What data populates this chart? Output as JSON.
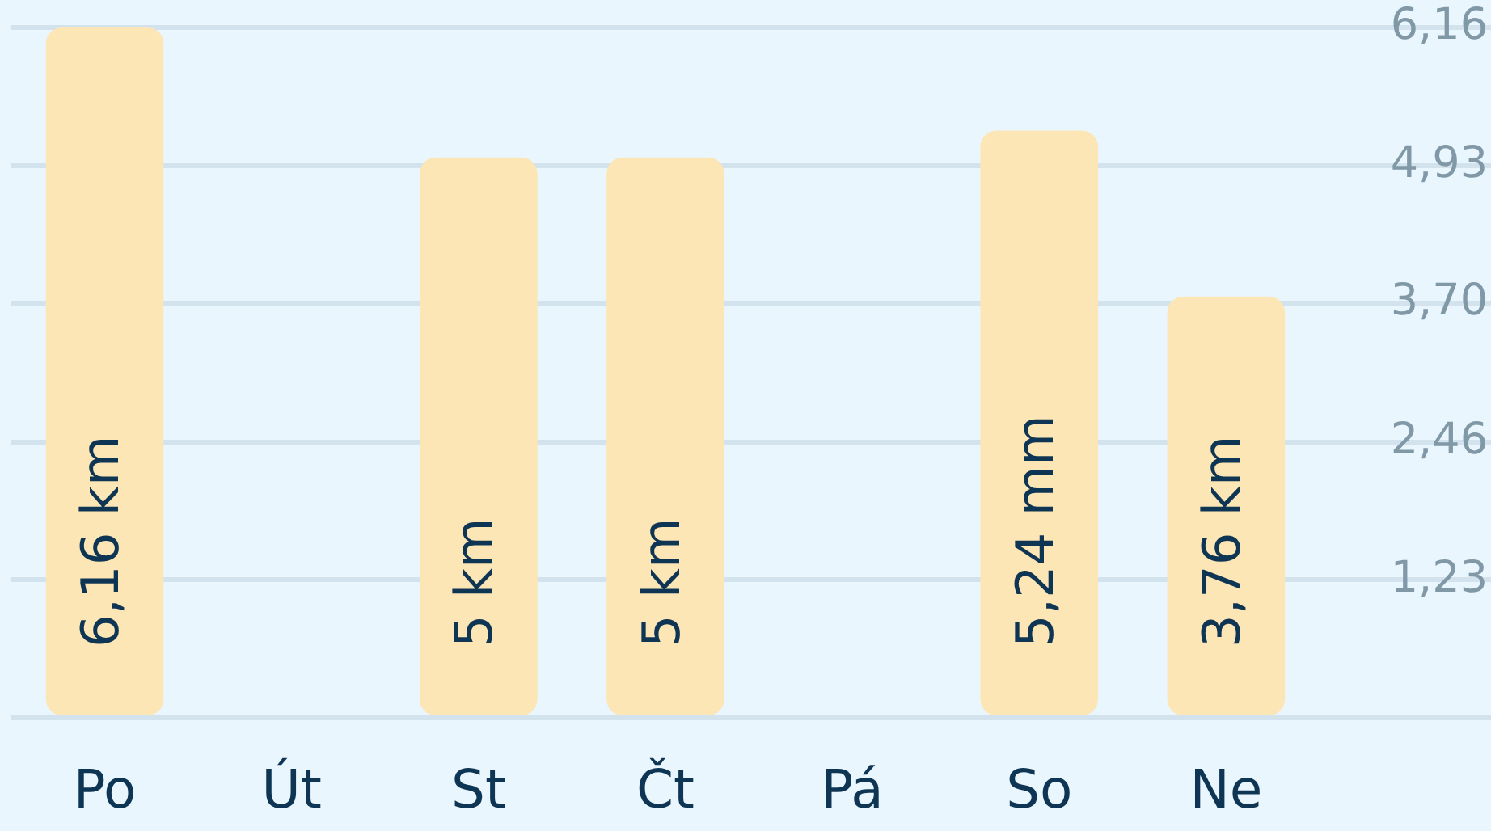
{
  "chart_data": {
    "type": "bar",
    "categories": [
      "Po",
      "Út",
      "St",
      "Čt",
      "Pá",
      "So",
      "Ne"
    ],
    "values": [
      6.16,
      null,
      5,
      5,
      null,
      5.24,
      3.76
    ],
    "value_labels": [
      "6,16 km",
      null,
      "5 km",
      "5 km",
      null,
      "5,24 mm",
      "3,76 km"
    ],
    "color": "#fde6b6",
    "ylim": [
      0,
      6.16
    ],
    "yticks": [
      {
        "value": 0,
        "label": null
      },
      {
        "value": 1.23,
        "label": "1,23"
      },
      {
        "value": 2.46,
        "label": "2,46"
      },
      {
        "value": 3.7,
        "label": "3,70"
      },
      {
        "value": 4.93,
        "label": "4,93"
      },
      {
        "value": 6.16,
        "label": "6,16"
      }
    ],
    "grid": "y"
  }
}
